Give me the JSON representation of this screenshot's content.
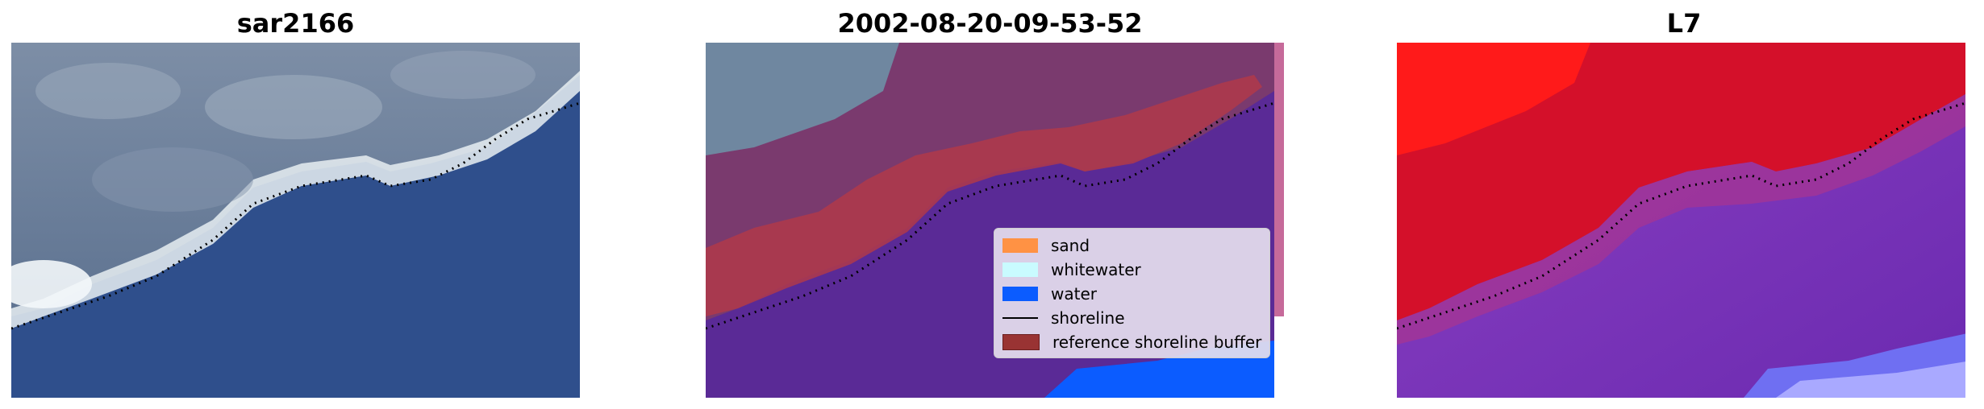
{
  "panels": [
    {
      "title": "sar2166"
    },
    {
      "title": "2002-08-20-09-53-52"
    },
    {
      "title": "L7"
    }
  ],
  "legend": {
    "items": [
      {
        "label": "sand",
        "color": "#ff9244"
      },
      {
        "label": "whitewater",
        "color": "#c9fbff"
      },
      {
        "label": "water",
        "color": "#0b5cff"
      },
      {
        "label": "shoreline",
        "color": "#000000",
        "kind": "line"
      },
      {
        "label": "reference shoreline buffer",
        "color": "#993333"
      }
    ]
  },
  "colors": {
    "water_dark": "#2f4f8c",
    "land_grey": "#8a9ab0",
    "classified_water": "#5a2a96",
    "buffer_red": "#b03a4a",
    "l7_red": "#d4102a",
    "l7_purple": "#7a2dbb"
  }
}
